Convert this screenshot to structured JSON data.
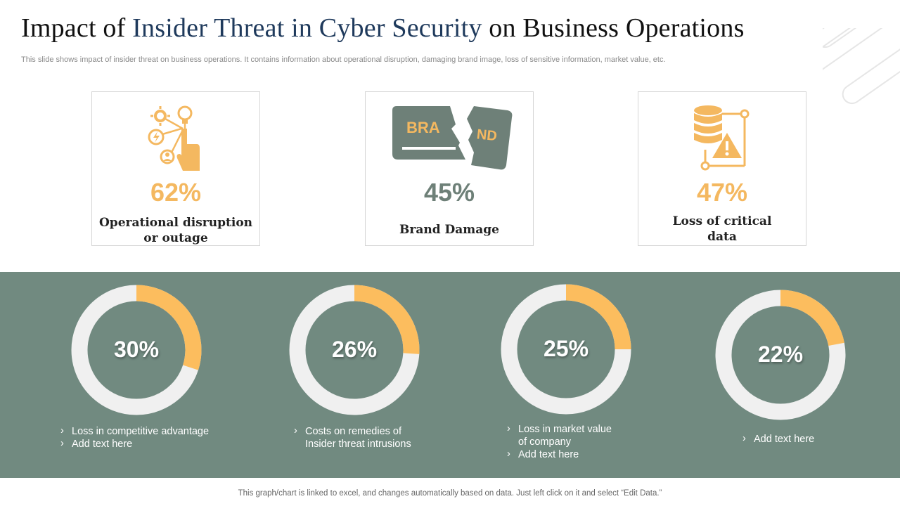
{
  "title": {
    "part1": "Impact of ",
    "highlight": "Insider Threat in Cyber Security",
    "part2": " on Business Operations"
  },
  "subtitle": "This slide shows impact of insider threat on business operations. It contains information about operational disruption, damaging brand image, loss of sensitive information, market value, etc.",
  "colors": {
    "accent": "#fcbd5e",
    "band": "#718a80",
    "slate": "#6e8078",
    "track": "#f0f0f0"
  },
  "cards": [
    {
      "icon": "network-hand-icon",
      "percent": "62%",
      "label_lines": [
        "Operational disruption",
        "or outage"
      ],
      "color": "#f4b860"
    },
    {
      "icon": "brand-torn-icon",
      "percent": "45%",
      "label_lines": [
        "Brand Damage"
      ],
      "color": "#6e8078",
      "brand_left": "BRA",
      "brand_right": "ND"
    },
    {
      "icon": "database-warning-icon",
      "percent": "47%",
      "label_lines": [
        "Loss of critical",
        "data"
      ],
      "color": "#f4b860"
    }
  ],
  "chart_data": {
    "type": "pie",
    "series": [
      {
        "value": 30,
        "label": "30%",
        "bullets": [
          "Loss in competitive advantage",
          "Add text here"
        ]
      },
      {
        "value": 26,
        "label": "26%",
        "bullets": [
          "Costs on remedies of Insider threat intrusions"
        ]
      },
      {
        "value": 25,
        "label": "25%",
        "bullets": [
          "Loss in market value of company",
          "Add text here"
        ]
      },
      {
        "value": 22,
        "label": "22%",
        "bullets": [
          "Add text here"
        ]
      }
    ]
  },
  "footer": "This graph/chart is linked to excel,  and changes automatically based on data. Just left click on it and select “Edit Data.”"
}
